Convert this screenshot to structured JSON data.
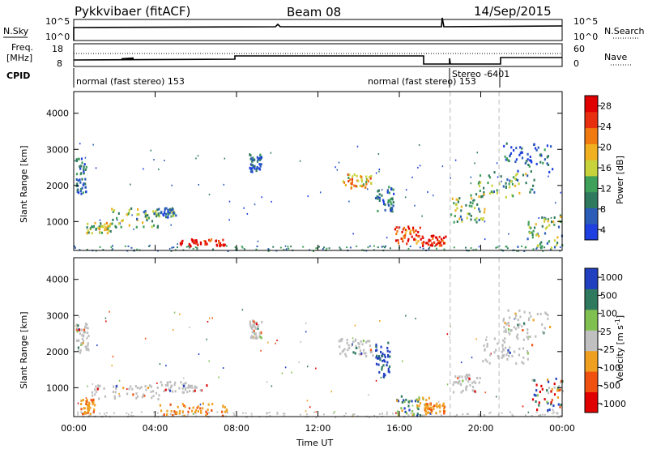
{
  "header": {
    "radar_title": "Pykkvibaer (fitACF)",
    "beam": "Beam 08",
    "date": "14/Sep/2015"
  },
  "status_panels": {
    "nsky": {
      "label": "N.Sky",
      "ticks_left": [
        "10^5",
        "10^0"
      ],
      "ticks_right": [
        "10^5",
        "10^0"
      ],
      "right_label": "N.Search"
    },
    "freq": {
      "label_line1": "Freq.",
      "label_line2": "[MHz]",
      "ticks_left": [
        "18",
        "8"
      ],
      "ticks_right": [
        "60",
        "0"
      ],
      "right_label": "Nave"
    },
    "cpid": {
      "label": "CPID",
      "segments": [
        {
          "text": "normal (fast stereo) 153",
          "start_hour": 0.0
        },
        {
          "text": "normal (fast stereo) 153",
          "start_hour": 15.7
        },
        {
          "text": "Stereo -6401",
          "start_hour": 18.5
        }
      ]
    }
  },
  "colors": {
    "frame": "#000000",
    "power_scale": [
      "#1f3fe0",
      "#2a5cb8",
      "#2f7a5e",
      "#3fa05a",
      "#c8d23a",
      "#f0b020",
      "#f07a10",
      "#e83010",
      "#e00000"
    ],
    "velocity_scale": [
      "#e00000",
      "#f05010",
      "#f0a020",
      "#c0c0c0",
      "#80c050",
      "#2f7a5e",
      "#2040c0"
    ],
    "ground_scatter_grey": "#bdbdbd",
    "dashed_marker": "#bbbbbb"
  },
  "power_bar": {
    "label": "Power [dB]",
    "ticks": [
      "28",
      "24",
      "20",
      "16",
      "12",
      "8",
      "4"
    ]
  },
  "velocity_bar": {
    "label": "Velocity [m s",
    "label_exponent": "-1",
    "label_close": "]",
    "ticks": [
      "1000",
      "500",
      "100",
      "25",
      "-25",
      "-100",
      "-500",
      "-1000"
    ]
  },
  "chart_data": [
    {
      "type": "heatmap",
      "name": "power",
      "ylabel": "Slant Range [km]",
      "xlabel": "",
      "xlim_hours": [
        0,
        24
      ],
      "ylim_km": [
        200,
        4600
      ],
      "x_tick_hours": [
        0,
        4,
        8,
        12,
        16,
        20,
        24
      ],
      "y_ticks": [
        1000,
        2000,
        3000,
        4000
      ],
      "marker_hours": [
        18.5,
        20.9
      ],
      "regions": [
        {
          "hours": [
            0.1,
            0.6
          ],
          "km": [
            1800,
            2800
          ],
          "level": 0.2
        },
        {
          "hours": [
            0.6,
            1.8
          ],
          "km": [
            700,
            1000
          ],
          "level": 0.5
        },
        {
          "hours": [
            1.8,
            4.2
          ],
          "km": [
            850,
            1400
          ],
          "level": 0.4
        },
        {
          "hours": [
            4.0,
            5.0
          ],
          "km": [
            1150,
            1400
          ],
          "level": 0.25
        },
        {
          "hours": [
            5.2,
            7.4
          ],
          "km": [
            350,
            550
          ],
          "level": 0.95
        },
        {
          "hours": [
            8.6,
            9.2
          ],
          "km": [
            2400,
            2900
          ],
          "level": 0.15
        },
        {
          "hours": [
            13.2,
            14.6
          ],
          "km": [
            1950,
            2350
          ],
          "level": 0.6
        },
        {
          "hours": [
            14.8,
            15.7
          ],
          "km": [
            1300,
            2000
          ],
          "level": 0.2
        },
        {
          "hours": [
            15.7,
            17.0
          ],
          "km": [
            400,
            900
          ],
          "level": 0.8
        },
        {
          "hours": [
            16.9,
            18.3
          ],
          "km": [
            350,
            650
          ],
          "level": 0.95
        },
        {
          "hours": [
            18.5,
            20.2
          ],
          "km": [
            1000,
            1800
          ],
          "level": 0.4
        },
        {
          "hours": [
            19.8,
            22.6
          ],
          "km": [
            1700,
            2400
          ],
          "level": 0.35
        },
        {
          "hours": [
            21.0,
            23.5
          ],
          "km": [
            2400,
            3200
          ],
          "level": 0.15
        },
        {
          "hours": [
            22.2,
            24.0
          ],
          "km": [
            300,
            1200
          ],
          "level": 0.4
        }
      ]
    },
    {
      "type": "heatmap",
      "name": "velocity",
      "ylabel": "Slant Range [km]",
      "xlabel": "Time UT",
      "xlim_hours": [
        0,
        24
      ],
      "ylim_km": [
        200,
        4600
      ],
      "x_tick_labels": [
        "00:00",
        "04:00",
        "08:00",
        "12:00",
        "16:00",
        "20:00",
        "00:00"
      ],
      "x_tick_hours": [
        0,
        4,
        8,
        12,
        16,
        20,
        24
      ],
      "y_ticks": [
        1000,
        2000,
        3000,
        4000
      ],
      "marker_hours": [
        18.5,
        20.9
      ],
      "regions": [
        {
          "hours": [
            0.1,
            0.7
          ],
          "km": [
            2000,
            2800
          ],
          "kind": "grey"
        },
        {
          "hours": [
            0.3,
            1.0
          ],
          "km": [
            300,
            700
          ],
          "kind": "orange"
        },
        {
          "hours": [
            0.8,
            4.2
          ],
          "km": [
            700,
            1100
          ],
          "kind": "grey"
        },
        {
          "hours": [
            4.2,
            6.5
          ],
          "km": [
            900,
            1200
          ],
          "kind": "grey"
        },
        {
          "hours": [
            4.2,
            7.5
          ],
          "km": [
            250,
            600
          ],
          "kind": "orange"
        },
        {
          "hours": [
            8.6,
            9.2
          ],
          "km": [
            2400,
            2900
          ],
          "kind": "grey"
        },
        {
          "hours": [
            13.0,
            14.7
          ],
          "km": [
            1900,
            2400
          ],
          "kind": "grey"
        },
        {
          "hours": [
            14.8,
            15.5
          ],
          "km": [
            1300,
            2300
          ],
          "kind": "blue"
        },
        {
          "hours": [
            15.8,
            17.5
          ],
          "km": [
            250,
            800
          ],
          "kind": "green"
        },
        {
          "hours": [
            17.2,
            18.2
          ],
          "km": [
            300,
            600
          ],
          "kind": "orange"
        },
        {
          "hours": [
            18.6,
            20.0
          ],
          "km": [
            900,
            1400
          ],
          "kind": "grey"
        },
        {
          "hours": [
            20.0,
            22.5
          ],
          "km": [
            1700,
            2400
          ],
          "kind": "grey"
        },
        {
          "hours": [
            21.0,
            23.5
          ],
          "km": [
            2400,
            3200
          ],
          "kind": "grey"
        },
        {
          "hours": [
            22.3,
            24.0
          ],
          "km": [
            300,
            1300
          ],
          "kind": "mix"
        }
      ]
    }
  ],
  "axis": {
    "time_label": "Time UT",
    "range_label": "Slant Range [km]"
  }
}
